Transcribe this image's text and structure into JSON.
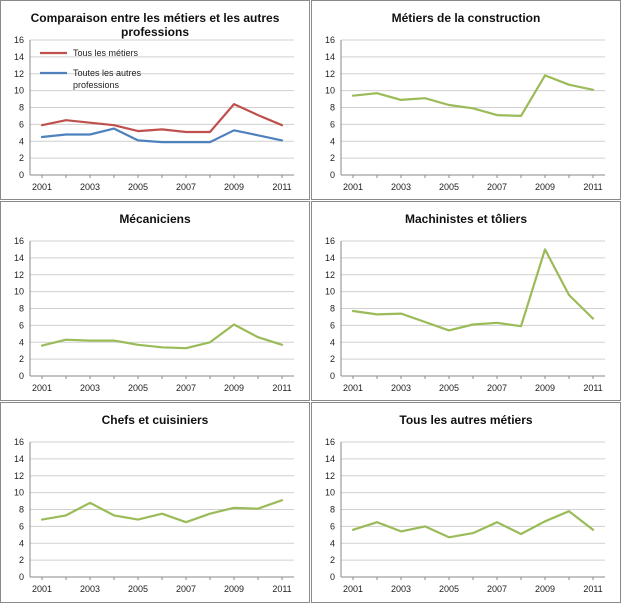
{
  "chart_data": [
    {
      "type": "line",
      "title": "Comparaison entre les métiers et les autres professions",
      "title_lines": [
        "Comparaison entre les métiers et les autres",
        "professions"
      ],
      "x": [
        2001,
        2002,
        2003,
        2004,
        2005,
        2006,
        2007,
        2008,
        2009,
        2010,
        2011
      ],
      "xticks": [
        "2001",
        "2003",
        "2005",
        "2007",
        "2009",
        "2011"
      ],
      "ylim": [
        0,
        16
      ],
      "yticks": [
        "0",
        "2",
        "4",
        "6",
        "8",
        "10",
        "12",
        "14",
        "16"
      ],
      "grid": true,
      "legend_position": "top-left",
      "series": [
        {
          "name": "Tous les métiers",
          "name_lines": [
            "Tous les métiers"
          ],
          "color": "#c0504d",
          "values": [
            5.9,
            6.5,
            6.2,
            5.9,
            5.2,
            5.4,
            5.1,
            5.1,
            8.4,
            7.1,
            5.9
          ]
        },
        {
          "name": "Toutes les autres professions",
          "name_lines": [
            "Toutes les autres",
            "professions"
          ],
          "color": "#4f81bd",
          "values": [
            4.5,
            4.8,
            4.8,
            5.5,
            4.1,
            3.9,
            3.9,
            3.9,
            5.3,
            4.7,
            4.1
          ]
        }
      ]
    },
    {
      "type": "line",
      "title": "Métiers de la construction",
      "title_lines": [
        "Métiers de la construction"
      ],
      "x": [
        2001,
        2002,
        2003,
        2004,
        2005,
        2006,
        2007,
        2008,
        2009,
        2010,
        2011
      ],
      "xticks": [
        "2001",
        "2003",
        "2005",
        "2007",
        "2009",
        "2011"
      ],
      "ylim": [
        0,
        16
      ],
      "yticks": [
        "0",
        "2",
        "4",
        "6",
        "8",
        "10",
        "12",
        "14",
        "16"
      ],
      "grid": true,
      "series": [
        {
          "name": "Métiers de la construction",
          "color": "#9bbb59",
          "values": [
            9.4,
            9.7,
            8.9,
            9.1,
            8.3,
            7.9,
            7.1,
            7.0,
            11.8,
            10.7,
            10.1
          ]
        }
      ]
    },
    {
      "type": "line",
      "title": "Mécaniciens",
      "title_lines": [
        "Mécaniciens"
      ],
      "x": [
        2001,
        2002,
        2003,
        2004,
        2005,
        2006,
        2007,
        2008,
        2009,
        2010,
        2011
      ],
      "xticks": [
        "2001",
        "2003",
        "2005",
        "2007",
        "2009",
        "2011"
      ],
      "ylim": [
        0,
        16
      ],
      "yticks": [
        "0",
        "2",
        "4",
        "6",
        "8",
        "10",
        "12",
        "14",
        "16"
      ],
      "grid": true,
      "series": [
        {
          "name": "Mécaniciens",
          "color": "#9bbb59",
          "values": [
            3.6,
            4.3,
            4.2,
            4.2,
            3.7,
            3.4,
            3.3,
            4.0,
            6.1,
            4.6,
            3.7
          ]
        }
      ]
    },
    {
      "type": "line",
      "title": "Machinistes et tôliers",
      "title_lines": [
        "Machinistes et tôliers"
      ],
      "x": [
        2001,
        2002,
        2003,
        2004,
        2005,
        2006,
        2007,
        2008,
        2009,
        2010,
        2011
      ],
      "xticks": [
        "2001",
        "2003",
        "2005",
        "2007",
        "2009",
        "2011"
      ],
      "ylim": [
        0,
        16
      ],
      "yticks": [
        "0",
        "2",
        "4",
        "6",
        "8",
        "10",
        "12",
        "14",
        "16"
      ],
      "grid": true,
      "series": [
        {
          "name": "Machinistes et tôliers",
          "color": "#9bbb59",
          "values": [
            7.7,
            7.3,
            7.4,
            6.4,
            5.4,
            6.1,
            6.3,
            5.9,
            15.0,
            9.6,
            6.8
          ]
        }
      ]
    },
    {
      "type": "line",
      "title": "Chefs et cuisiniers",
      "title_lines": [
        "Chefs et cuisiniers"
      ],
      "x": [
        2001,
        2002,
        2003,
        2004,
        2005,
        2006,
        2007,
        2008,
        2009,
        2010,
        2011
      ],
      "xticks": [
        "2001",
        "2003",
        "2005",
        "2007",
        "2009",
        "2011"
      ],
      "ylim": [
        0,
        16
      ],
      "yticks": [
        "0",
        "2",
        "4",
        "6",
        "8",
        "10",
        "12",
        "14",
        "16"
      ],
      "grid": true,
      "series": [
        {
          "name": "Chefs et cuisiniers",
          "color": "#9bbb59",
          "values": [
            6.8,
            7.3,
            8.8,
            7.3,
            6.8,
            7.5,
            6.5,
            7.5,
            8.2,
            8.1,
            9.1
          ]
        }
      ]
    },
    {
      "type": "line",
      "title": "Tous les autres métiers",
      "title_lines": [
        "Tous les autres métiers"
      ],
      "x": [
        2001,
        2002,
        2003,
        2004,
        2005,
        2006,
        2007,
        2008,
        2009,
        2010,
        2011
      ],
      "xticks": [
        "2001",
        "2003",
        "2005",
        "2007",
        "2009",
        "2011"
      ],
      "ylim": [
        0,
        16
      ],
      "yticks": [
        "0",
        "2",
        "4",
        "6",
        "8",
        "10",
        "12",
        "14",
        "16"
      ],
      "grid": true,
      "series": [
        {
          "name": "Tous les autres métiers",
          "color": "#9bbb59",
          "values": [
            5.6,
            6.5,
            5.4,
            6.0,
            4.7,
            5.2,
            6.5,
            5.1,
            6.6,
            7.8,
            5.6
          ]
        }
      ]
    }
  ]
}
